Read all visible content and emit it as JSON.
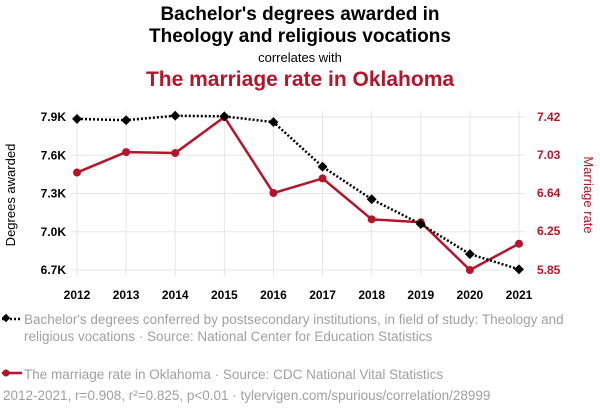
{
  "title_line1": "Bachelor's degrees awarded in",
  "title_line2": "Theology and religious vocations",
  "correlates_text": "correlates with",
  "title_line3": "The marriage rate in Oklahoma",
  "footer": "2012-2021, r=0.908, r²=0.825, p<0.01 · tylervigen.com/spurious/correlation/28999",
  "colors": {
    "series1": "#000000",
    "series2": "#b5152b",
    "muted": "#a0a0a0",
    "grid": "#e6e6e6"
  },
  "chart_data": {
    "type": "line",
    "x": [
      2012,
      2013,
      2014,
      2015,
      2016,
      2017,
      2018,
      2019,
      2020,
      2021
    ],
    "ylabel_left": "Degrees awarded",
    "ylabel_right": "Marriage rate",
    "left_ticks": [
      "7.9K",
      "7.6K",
      "7.3K",
      "7.0K",
      "6.7K"
    ],
    "left_tick_values": [
      7900,
      7600,
      7300,
      7000,
      6700
    ],
    "right_ticks": [
      "7.42",
      "7.03",
      "6.64",
      "6.25",
      "5.85"
    ],
    "right_tick_values": [
      7.42,
      7.03,
      6.64,
      6.25,
      5.85
    ],
    "ylim_left": [
      6700,
      7900
    ],
    "ylim_right": [
      5.85,
      7.42
    ],
    "series": [
      {
        "name": "Bachelor's degrees conferred by postsecondary institutions, in field of study: Theology and religious vocations · Source: National Center for Education Statistics",
        "axis": "left",
        "values": [
          7885,
          7875,
          7910,
          7905,
          7860,
          7510,
          7255,
          7060,
          6825,
          6705
        ]
      },
      {
        "name": "The marriage rate in Oklahoma · Source: CDC National Vital Statistics",
        "axis": "right",
        "values": [
          6.85,
          7.06,
          7.05,
          7.42,
          6.64,
          6.79,
          6.37,
          6.34,
          5.85,
          6.12
        ]
      }
    ]
  }
}
